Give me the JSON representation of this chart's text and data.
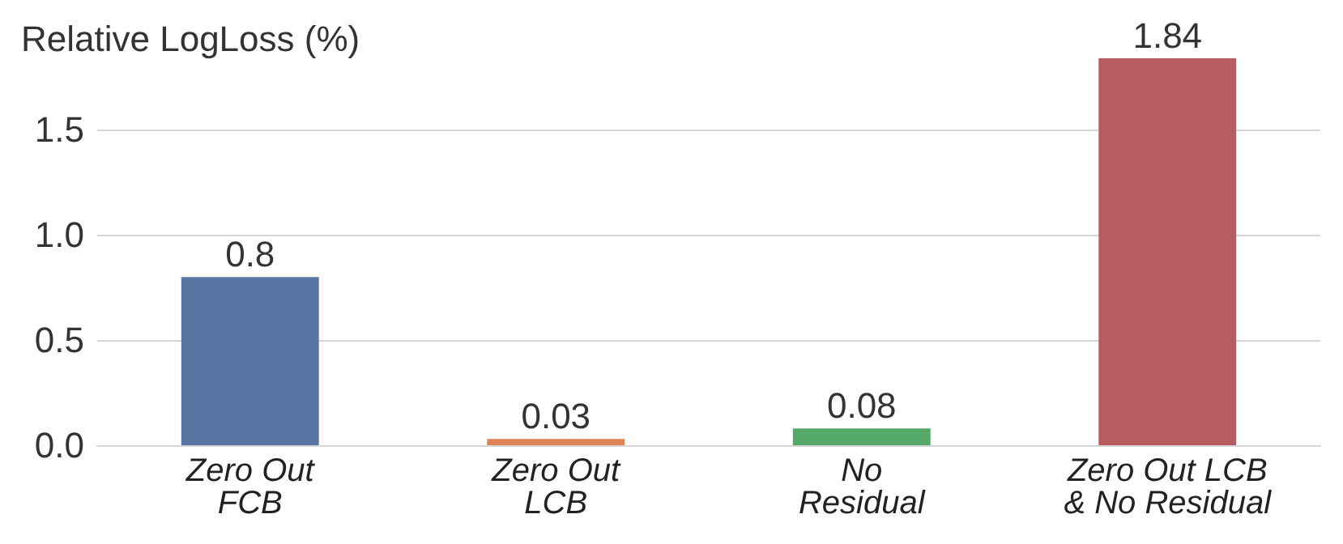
{
  "chart_data": {
    "type": "bar",
    "ylabel": "Relative LogLoss (%)",
    "categories": [
      "Zero Out\nFCB",
      "Zero Out\nLCB",
      "No\nResidual",
      "Zero Out LCB\n& No Residual"
    ],
    "values": [
      0.8,
      0.03,
      0.08,
      1.84
    ],
    "colors": [
      "#5875a4",
      "#dd8452",
      "#55a868",
      "#b55d60"
    ],
    "ylim": [
      0,
      1.84
    ],
    "yticks": [
      {
        "value": 0,
        "label": "0.0"
      },
      {
        "value": 0.5,
        "label": "0.5"
      },
      {
        "value": 1,
        "label": "1.0"
      },
      {
        "value": 1.5,
        "label": "1.5"
      }
    ],
    "grid": "y",
    "data_labels": true
  }
}
